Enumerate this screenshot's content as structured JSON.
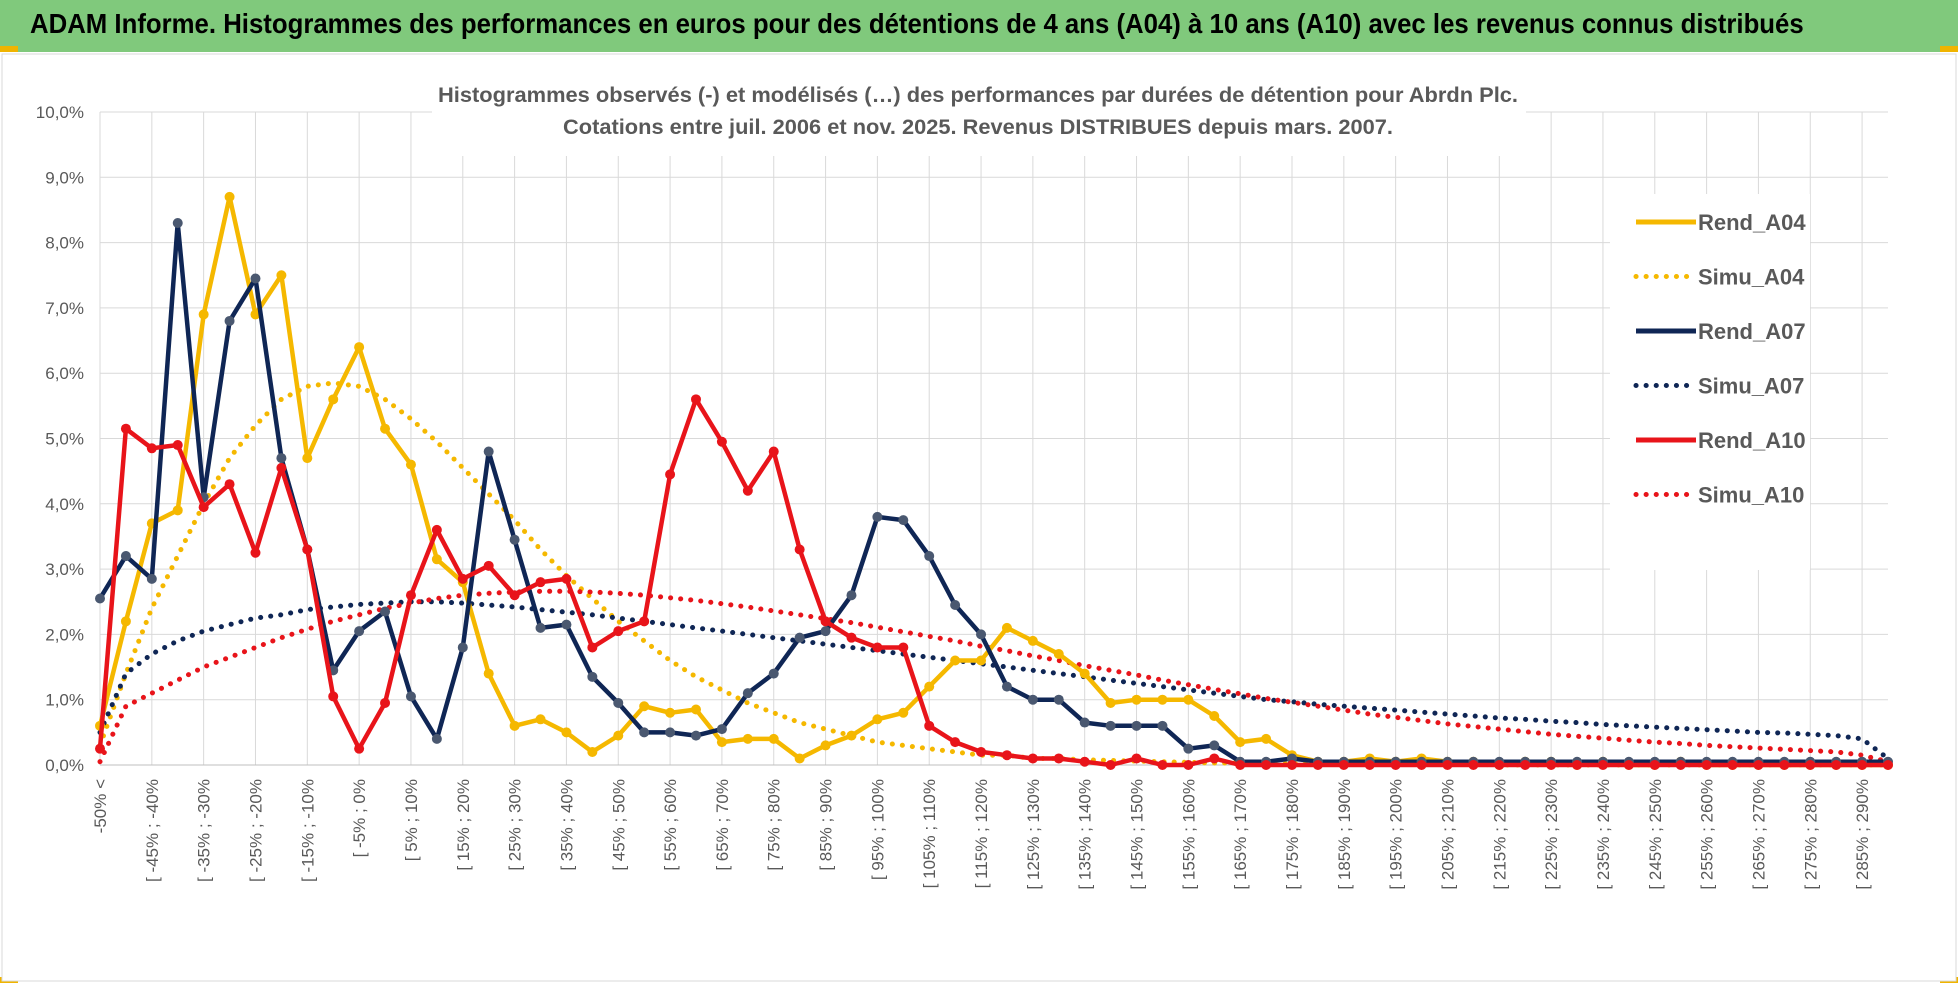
{
  "header": {
    "title": "ADAM Informe. Histogrammes des performances en euros pour des détentions de 4 ans (A04) à 10 ans (A10) avec les revenus connus distribués"
  },
  "colors": {
    "header_bg": "#80c97c",
    "a04": "#f5b800",
    "a07": "#0f2655",
    "a10": "#e8141a",
    "grid": "#d9d9d9",
    "axis_text": "#595959"
  },
  "chart_data": {
    "type": "line",
    "title": "Histogrammes observés (-) et modélisés (…)  des performances par durées de détention pour Abrdn Plc.",
    "subtitle": "Cotations entre juil. 2006 et nov. 2025. Revenus DISTRIBUES depuis mars. 2007.",
    "xlabel": "",
    "ylabel": "",
    "ylim": [
      0,
      10
    ],
    "y_ticks": [
      "0,0%",
      "1,0%",
      "2,0%",
      "3,0%",
      "4,0%",
      "5,0%",
      "6,0%",
      "7,0%",
      "8,0%",
      "9,0%",
      "10,0%"
    ],
    "categories": [
      "-50% <",
      "",
      "[ -45% ; -40%",
      "",
      "[ -35% ; -30%",
      "",
      "[ -25% ; -20%",
      "",
      "[ -15% ; -10%",
      "",
      "[ -5% ; 0%",
      "",
      "[ 5% ; 10%",
      "",
      "[ 15% ; 20%",
      "",
      "[ 25% ; 30%",
      "",
      "[ 35% ; 40%",
      "",
      "[ 45% ; 50%",
      "",
      "[ 55% ; 60%",
      "",
      "[ 65% ; 70%",
      "",
      "[ 75% ; 80%",
      "",
      "[ 85% ; 90%",
      "",
      "[ 95% ; 100%",
      "",
      "[ 105% ; 110%",
      "",
      "[ 115% ; 120%",
      "",
      "[ 125% ; 130%",
      "",
      "[ 135% ; 140%",
      "",
      "[ 145% ; 150%",
      "",
      "[ 155% ; 160%",
      "",
      "[ 165% ; 170%",
      "",
      "[ 175% ; 180%",
      "",
      "[ 185% ; 190%",
      "",
      "[ 195% ; 200%",
      "",
      "[ 205% ; 210%",
      "",
      "[ 215% ; 220%",
      "",
      "[ 225% ; 230%",
      "",
      "[ 235% ; 240%",
      "",
      "[ 245% ; 250%",
      "",
      "[ 255% ; 260%",
      "",
      "[ 265% ; 270%",
      "",
      "[ 275% ; 280%",
      "",
      "[ 285% ; 290%",
      ""
    ],
    "series": [
      {
        "name": "Rend_A04",
        "style": "solid",
        "color": "#f5b800",
        "values": [
          0.6,
          2.2,
          3.7,
          3.9,
          6.9,
          8.7,
          6.9,
          7.5,
          4.7,
          5.6,
          6.4,
          5.15,
          4.6,
          3.15,
          2.8,
          1.4,
          0.6,
          0.7,
          0.5,
          0.2,
          0.45,
          0.9,
          0.8,
          0.85,
          0.35,
          0.4,
          0.4,
          0.1,
          0.3,
          0.45,
          0.7,
          0.8,
          1.2,
          1.6,
          1.6,
          2.1,
          1.9,
          1.7,
          1.4,
          0.95,
          1.0,
          1.0,
          1.0,
          0.75,
          0.35,
          0.4,
          0.15,
          0.05,
          0.05,
          0.1,
          0.05,
          0.1,
          0.05,
          0.05,
          0.0,
          0.05,
          0.05,
          0.0,
          0.05,
          0.0,
          0.0,
          0.05,
          0.0,
          0.0,
          0.0,
          0.0,
          0.0,
          0.0,
          0.0,
          0.0
        ]
      },
      {
        "name": "Simu_A04",
        "style": "dotted",
        "color": "#f5b800",
        "values": [
          0.3,
          1.4,
          2.4,
          3.2,
          4.0,
          4.7,
          5.2,
          5.6,
          5.8,
          5.85,
          5.8,
          5.6,
          5.3,
          4.95,
          4.55,
          4.15,
          3.75,
          3.3,
          2.9,
          2.55,
          2.2,
          1.9,
          1.6,
          1.35,
          1.15,
          0.95,
          0.8,
          0.65,
          0.55,
          0.45,
          0.35,
          0.3,
          0.25,
          0.2,
          0.15,
          0.15,
          0.1,
          0.1,
          0.08,
          0.07,
          0.06,
          0.05,
          0.04,
          0.03,
          0.03,
          0.02,
          0.02,
          0.02,
          0.01,
          0.01,
          0.01,
          0.01,
          0.01,
          0.01,
          0.0,
          0.0,
          0.0,
          0.0,
          0.0,
          0.0,
          0.0,
          0.0,
          0.0,
          0.0,
          0.0,
          0.0,
          0.0,
          0.0,
          0.0,
          0.0
        ]
      },
      {
        "name": "Rend_A07",
        "style": "solid",
        "color": "#0f2655",
        "values": [
          2.55,
          3.2,
          2.85,
          8.3,
          4.1,
          6.8,
          7.45,
          4.7,
          3.3,
          1.45,
          2.05,
          2.35,
          1.05,
          0.4,
          1.8,
          4.8,
          3.45,
          2.1,
          2.15,
          1.35,
          0.95,
          0.5,
          0.5,
          0.45,
          0.55,
          1.1,
          1.4,
          1.95,
          2.05,
          2.6,
          3.8,
          3.75,
          3.2,
          2.45,
          2.0,
          1.2,
          1.0,
          1.0,
          0.65,
          0.6,
          0.6,
          0.6,
          0.25,
          0.3,
          0.05,
          0.05,
          0.1,
          0.05,
          0.05,
          0.05,
          0.05,
          0.05,
          0.05,
          0.05,
          0.05,
          0.05,
          0.05,
          0.05,
          0.05,
          0.05,
          0.05,
          0.05,
          0.05,
          0.05,
          0.05,
          0.05,
          0.05,
          0.05,
          0.05,
          0.05
        ]
      },
      {
        "name": "Simu_A07",
        "style": "dotted",
        "color": "#0f2655",
        "values": [
          0.5,
          1.4,
          1.7,
          1.9,
          2.05,
          2.15,
          2.25,
          2.3,
          2.38,
          2.42,
          2.46,
          2.48,
          2.5,
          2.5,
          2.48,
          2.45,
          2.42,
          2.38,
          2.34,
          2.3,
          2.25,
          2.2,
          2.15,
          2.1,
          2.05,
          2.0,
          1.95,
          1.9,
          1.85,
          1.8,
          1.75,
          1.7,
          1.65,
          1.6,
          1.55,
          1.5,
          1.45,
          1.4,
          1.35,
          1.3,
          1.25,
          1.2,
          1.15,
          1.1,
          1.05,
          1.0,
          0.97,
          0.93,
          0.9,
          0.87,
          0.84,
          0.81,
          0.78,
          0.75,
          0.72,
          0.7,
          0.67,
          0.65,
          0.62,
          0.6,
          0.58,
          0.56,
          0.54,
          0.52,
          0.5,
          0.49,
          0.47,
          0.45,
          0.4,
          0.1
        ]
      },
      {
        "name": "Rend_A10",
        "style": "solid",
        "color": "#e8141a",
        "values": [
          0.25,
          5.15,
          4.85,
          4.9,
          3.95,
          4.3,
          3.25,
          4.55,
          3.3,
          1.05,
          0.25,
          0.95,
          2.6,
          3.6,
          2.85,
          3.05,
          2.6,
          2.8,
          2.85,
          1.8,
          2.05,
          2.2,
          4.45,
          5.6,
          4.95,
          4.2,
          4.8,
          3.3,
          2.2,
          1.95,
          1.8,
          1.8,
          0.6,
          0.35,
          0.2,
          0.15,
          0.1,
          0.1,
          0.05,
          0.0,
          0.1,
          0.0,
          0.0,
          0.1,
          0.0,
          0.0,
          0.0,
          0.0,
          0.0,
          0.0,
          0.0,
          0.0,
          0.0,
          0.0,
          0.0,
          0.0,
          0.0,
          0.0,
          0.0,
          0.0,
          0.0,
          0.0,
          0.0,
          0.0,
          0.0,
          0.0,
          0.0,
          0.0,
          0.0,
          0.0
        ]
      },
      {
        "name": "Simu_A10",
        "style": "dotted",
        "color": "#e8141a",
        "values": [
          0.05,
          0.9,
          1.1,
          1.3,
          1.5,
          1.65,
          1.8,
          1.95,
          2.08,
          2.2,
          2.3,
          2.4,
          2.48,
          2.55,
          2.6,
          2.63,
          2.65,
          2.66,
          2.66,
          2.65,
          2.63,
          2.6,
          2.56,
          2.52,
          2.47,
          2.42,
          2.36,
          2.3,
          2.24,
          2.18,
          2.11,
          2.04,
          1.97,
          1.9,
          1.82,
          1.75,
          1.67,
          1.6,
          1.52,
          1.45,
          1.38,
          1.3,
          1.23,
          1.16,
          1.09,
          1.02,
          0.96,
          0.9,
          0.84,
          0.78,
          0.73,
          0.68,
          0.63,
          0.59,
          0.55,
          0.51,
          0.47,
          0.44,
          0.41,
          0.38,
          0.35,
          0.33,
          0.3,
          0.28,
          0.26,
          0.24,
          0.22,
          0.2,
          0.15,
          0.05
        ]
      }
    ],
    "legend_position": "right",
    "grid": true
  }
}
